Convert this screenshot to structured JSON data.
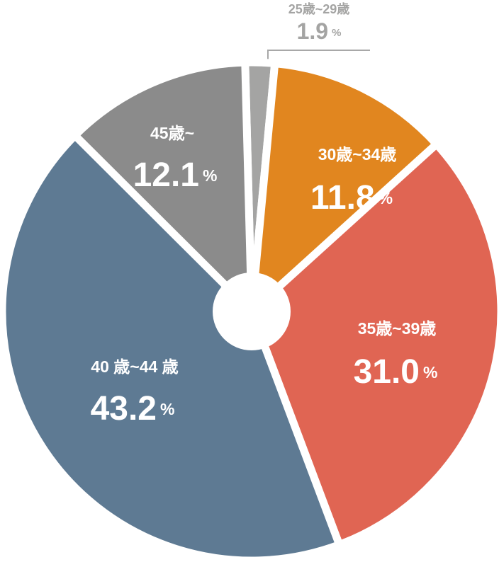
{
  "chart_data": {
    "type": "pie",
    "categories": [
      "25歳~29歳",
      "30歳~34歳",
      "35歳~39歳",
      "40 歳~44 歳",
      "45歳~"
    ],
    "values": [
      1.9,
      11.8,
      31.0,
      43.2,
      12.1
    ],
    "value_labels": [
      "1.9",
      "11.8",
      "31.0",
      "43.2",
      "12.1"
    ],
    "unit": "%",
    "colors": [
      "#a4a4a3",
      "#e1861f",
      "#e06553",
      "#5e7a93",
      "#8b8b8b"
    ]
  }
}
